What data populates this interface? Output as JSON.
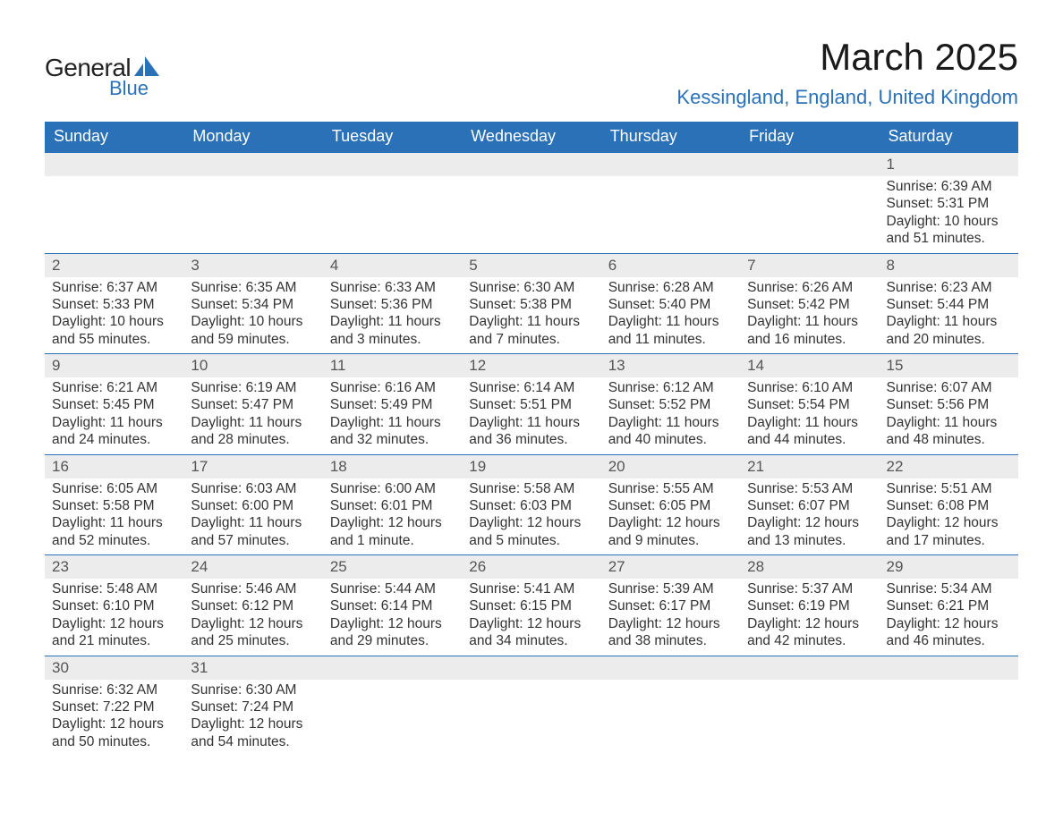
{
  "brand": {
    "word1": "General",
    "word2": "Blue",
    "text_color": "#222222",
    "accent_color": "#2a71b8"
  },
  "title": "March 2025",
  "location": "Kessingland, England, United Kingdom",
  "colors": {
    "header_bg": "#2a71b8",
    "header_text": "#ffffff",
    "daynum_bg": "#ececec",
    "daynum_text": "#555555",
    "body_text": "#333333",
    "row_border": "#2a71b8",
    "page_bg": "#ffffff"
  },
  "fonts": {
    "title_size_pt": 32,
    "location_size_pt": 17,
    "th_size_pt": 14,
    "cell_size_pt": 12
  },
  "weekdays": [
    "Sunday",
    "Monday",
    "Tuesday",
    "Wednesday",
    "Thursday",
    "Friday",
    "Saturday"
  ],
  "labels": {
    "sunrise": "Sunrise: ",
    "sunset": "Sunset: ",
    "daylight": "Daylight: "
  },
  "weeks": [
    [
      null,
      null,
      null,
      null,
      null,
      null,
      {
        "n": "1",
        "sunrise": "6:39 AM",
        "sunset": "5:31 PM",
        "daylight": "10 hours and 51 minutes."
      }
    ],
    [
      {
        "n": "2",
        "sunrise": "6:37 AM",
        "sunset": "5:33 PM",
        "daylight": "10 hours and 55 minutes."
      },
      {
        "n": "3",
        "sunrise": "6:35 AM",
        "sunset": "5:34 PM",
        "daylight": "10 hours and 59 minutes."
      },
      {
        "n": "4",
        "sunrise": "6:33 AM",
        "sunset": "5:36 PM",
        "daylight": "11 hours and 3 minutes."
      },
      {
        "n": "5",
        "sunrise": "6:30 AM",
        "sunset": "5:38 PM",
        "daylight": "11 hours and 7 minutes."
      },
      {
        "n": "6",
        "sunrise": "6:28 AM",
        "sunset": "5:40 PM",
        "daylight": "11 hours and 11 minutes."
      },
      {
        "n": "7",
        "sunrise": "6:26 AM",
        "sunset": "5:42 PM",
        "daylight": "11 hours and 16 minutes."
      },
      {
        "n": "8",
        "sunrise": "6:23 AM",
        "sunset": "5:44 PM",
        "daylight": "11 hours and 20 minutes."
      }
    ],
    [
      {
        "n": "9",
        "sunrise": "6:21 AM",
        "sunset": "5:45 PM",
        "daylight": "11 hours and 24 minutes."
      },
      {
        "n": "10",
        "sunrise": "6:19 AM",
        "sunset": "5:47 PM",
        "daylight": "11 hours and 28 minutes."
      },
      {
        "n": "11",
        "sunrise": "6:16 AM",
        "sunset": "5:49 PM",
        "daylight": "11 hours and 32 minutes."
      },
      {
        "n": "12",
        "sunrise": "6:14 AM",
        "sunset": "5:51 PM",
        "daylight": "11 hours and 36 minutes."
      },
      {
        "n": "13",
        "sunrise": "6:12 AM",
        "sunset": "5:52 PM",
        "daylight": "11 hours and 40 minutes."
      },
      {
        "n": "14",
        "sunrise": "6:10 AM",
        "sunset": "5:54 PM",
        "daylight": "11 hours and 44 minutes."
      },
      {
        "n": "15",
        "sunrise": "6:07 AM",
        "sunset": "5:56 PM",
        "daylight": "11 hours and 48 minutes."
      }
    ],
    [
      {
        "n": "16",
        "sunrise": "6:05 AM",
        "sunset": "5:58 PM",
        "daylight": "11 hours and 52 minutes."
      },
      {
        "n": "17",
        "sunrise": "6:03 AM",
        "sunset": "6:00 PM",
        "daylight": "11 hours and 57 minutes."
      },
      {
        "n": "18",
        "sunrise": "6:00 AM",
        "sunset": "6:01 PM",
        "daylight": "12 hours and 1 minute."
      },
      {
        "n": "19",
        "sunrise": "5:58 AM",
        "sunset": "6:03 PM",
        "daylight": "12 hours and 5 minutes."
      },
      {
        "n": "20",
        "sunrise": "5:55 AM",
        "sunset": "6:05 PM",
        "daylight": "12 hours and 9 minutes."
      },
      {
        "n": "21",
        "sunrise": "5:53 AM",
        "sunset": "6:07 PM",
        "daylight": "12 hours and 13 minutes."
      },
      {
        "n": "22",
        "sunrise": "5:51 AM",
        "sunset": "6:08 PM",
        "daylight": "12 hours and 17 minutes."
      }
    ],
    [
      {
        "n": "23",
        "sunrise": "5:48 AM",
        "sunset": "6:10 PM",
        "daylight": "12 hours and 21 minutes."
      },
      {
        "n": "24",
        "sunrise": "5:46 AM",
        "sunset": "6:12 PM",
        "daylight": "12 hours and 25 minutes."
      },
      {
        "n": "25",
        "sunrise": "5:44 AM",
        "sunset": "6:14 PM",
        "daylight": "12 hours and 29 minutes."
      },
      {
        "n": "26",
        "sunrise": "5:41 AM",
        "sunset": "6:15 PM",
        "daylight": "12 hours and 34 minutes."
      },
      {
        "n": "27",
        "sunrise": "5:39 AM",
        "sunset": "6:17 PM",
        "daylight": "12 hours and 38 minutes."
      },
      {
        "n": "28",
        "sunrise": "5:37 AM",
        "sunset": "6:19 PM",
        "daylight": "12 hours and 42 minutes."
      },
      {
        "n": "29",
        "sunrise": "5:34 AM",
        "sunset": "6:21 PM",
        "daylight": "12 hours and 46 minutes."
      }
    ],
    [
      {
        "n": "30",
        "sunrise": "6:32 AM",
        "sunset": "7:22 PM",
        "daylight": "12 hours and 50 minutes."
      },
      {
        "n": "31",
        "sunrise": "6:30 AM",
        "sunset": "7:24 PM",
        "daylight": "12 hours and 54 minutes."
      },
      null,
      null,
      null,
      null,
      null
    ]
  ]
}
